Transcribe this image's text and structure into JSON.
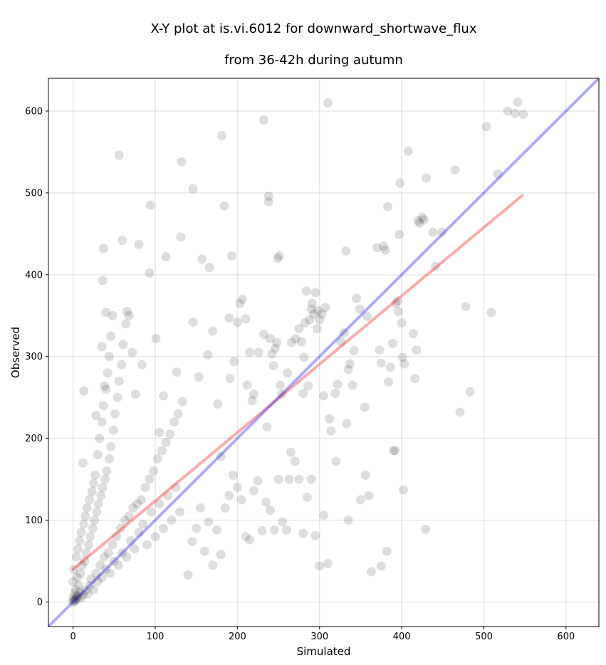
{
  "chart_data": {
    "type": "scatter",
    "title_line1": "X-Y plot at is.vi.6012 for downward_shortwave_flux",
    "title_line2": "from 36-42h during autumn",
    "xlabel": "Simulated",
    "ylabel": "Observed",
    "xlim": [
      -30,
      640
    ],
    "ylim": [
      -30,
      640
    ],
    "xticks": [
      0,
      100,
      200,
      300,
      400,
      500,
      600
    ],
    "yticks": [
      0,
      100,
      200,
      300,
      400,
      500,
      600
    ],
    "grid": true,
    "point_color": "#000000",
    "point_alpha": 0.13,
    "identity_line": {
      "color": "#0000ff",
      "from": [
        -30,
        -30
      ],
      "to": [
        640,
        640
      ]
    },
    "regression_line": {
      "color": "#ff0000",
      "from": [
        0,
        40
      ],
      "to": [
        547,
        497
      ]
    },
    "series": [
      {
        "points": [
          [
            0,
            0
          ],
          [
            1,
            2
          ],
          [
            2,
            1
          ],
          [
            3,
            4
          ],
          [
            0,
            5
          ],
          [
            4,
            3
          ],
          [
            5,
            8
          ],
          [
            2,
            10
          ],
          [
            6,
            6
          ],
          [
            8,
            12
          ],
          [
            3,
            15
          ],
          [
            10,
            5
          ],
          [
            7,
            20
          ],
          [
            12,
            9
          ],
          [
            0,
            25
          ],
          [
            15,
            14
          ],
          [
            5,
            30
          ],
          [
            18,
            10
          ],
          [
            9,
            35
          ],
          [
            20,
            20
          ],
          [
            1,
            40
          ],
          [
            22,
            28
          ],
          [
            11,
            45
          ],
          [
            25,
            15
          ],
          [
            14,
            50
          ],
          [
            28,
            35
          ],
          [
            4,
            55
          ],
          [
            30,
            25
          ],
          [
            16,
            60
          ],
          [
            33,
            45
          ],
          [
            6,
            65
          ],
          [
            35,
            30
          ],
          [
            19,
            70
          ],
          [
            38,
            55
          ],
          [
            8,
            75
          ],
          [
            40,
            40
          ],
          [
            21,
            80
          ],
          [
            43,
            60
          ],
          [
            10,
            85
          ],
          [
            45,
            35
          ],
          [
            24,
            90
          ],
          [
            48,
            70
          ],
          [
            13,
            95
          ],
          [
            50,
            50
          ],
          [
            26,
            100
          ],
          [
            53,
            80
          ],
          [
            15,
            105
          ],
          [
            55,
            45
          ],
          [
            29,
            110
          ],
          [
            58,
            90
          ],
          [
            17,
            115
          ],
          [
            60,
            60
          ],
          [
            31,
            120
          ],
          [
            63,
            100
          ],
          [
            20,
            125
          ],
          [
            65,
            55
          ],
          [
            34,
            130
          ],
          [
            68,
            105
          ],
          [
            23,
            135
          ],
          [
            70,
            75
          ],
          [
            36,
            140
          ],
          [
            73,
            115
          ],
          [
            25,
            145
          ],
          [
            75,
            65
          ],
          [
            39,
            150
          ],
          [
            78,
            120
          ],
          [
            27,
            155
          ],
          [
            80,
            85
          ],
          [
            41,
            160
          ],
          [
            83,
            125
          ],
          [
            12,
            170
          ],
          [
            85,
            95
          ],
          [
            44,
            175
          ],
          [
            88,
            140
          ],
          [
            30,
            180
          ],
          [
            90,
            70
          ],
          [
            46,
            190
          ],
          [
            93,
            150
          ],
          [
            32,
            200
          ],
          [
            95,
            110
          ],
          [
            49,
            210
          ],
          [
            98,
            160
          ],
          [
            35,
            220
          ],
          [
            100,
            80
          ],
          [
            51,
            230
          ],
          [
            103,
            175
          ],
          [
            37,
            240
          ],
          [
            105,
            120
          ],
          [
            54,
            250
          ],
          [
            108,
            185
          ],
          [
            40,
            260
          ],
          [
            110,
            90
          ],
          [
            56,
            270
          ],
          [
            113,
            195
          ],
          [
            42,
            280
          ],
          [
            115,
            130
          ],
          [
            59,
            290
          ],
          [
            118,
            205
          ],
          [
            44,
            300
          ],
          [
            120,
            100
          ],
          [
            61,
            315
          ],
          [
            123,
            220
          ],
          [
            46,
            325
          ],
          [
            125,
            140
          ],
          [
            64,
            340
          ],
          [
            128,
            230
          ],
          [
            48,
            350
          ],
          [
            130,
            110
          ],
          [
            66,
            355
          ],
          [
            133,
            245
          ],
          [
            13,
            258
          ],
          [
            28,
            228
          ],
          [
            35,
            312
          ],
          [
            38,
            264
          ],
          [
            40,
            354
          ],
          [
            36,
            393
          ],
          [
            37,
            432
          ],
          [
            56,
            546
          ],
          [
            60,
            442
          ],
          [
            68,
            350
          ],
          [
            72,
            305
          ],
          [
            76,
            254
          ],
          [
            80,
            437
          ],
          [
            84,
            290
          ],
          [
            93,
            402
          ],
          [
            94,
            485
          ],
          [
            101,
            322
          ],
          [
            105,
            207
          ],
          [
            110,
            252
          ],
          [
            113,
            422
          ],
          [
            126,
            281
          ],
          [
            131,
            446
          ],
          [
            132,
            538
          ],
          [
            146,
            342
          ],
          [
            146,
            505
          ],
          [
            153,
            275
          ],
          [
            157,
            419
          ],
          [
            164,
            302
          ],
          [
            166,
            409
          ],
          [
            170,
            331
          ],
          [
            176,
            242
          ],
          [
            180,
            178
          ],
          [
            181,
            570
          ],
          [
            184,
            484
          ],
          [
            190,
            347
          ],
          [
            191,
            273
          ],
          [
            193,
            423
          ],
          [
            196,
            294
          ],
          [
            200,
            342
          ],
          [
            203,
            365
          ],
          [
            206,
            370
          ],
          [
            210,
            346
          ],
          [
            212,
            265
          ],
          [
            215,
            305
          ],
          [
            218,
            246
          ],
          [
            220,
            254
          ],
          [
            226,
            305
          ],
          [
            232,
            327
          ],
          [
            232,
            589
          ],
          [
            236,
            214
          ],
          [
            238,
            496
          ],
          [
            238,
            489
          ],
          [
            240,
            322
          ],
          [
            242,
            303
          ],
          [
            244,
            289
          ],
          [
            246,
            310
          ],
          [
            248,
            317
          ],
          [
            249,
            420
          ],
          [
            251,
            423
          ],
          [
            252,
            265
          ],
          [
            254,
            254
          ],
          [
            261,
            280
          ],
          [
            263,
            150
          ],
          [
            265,
            183
          ],
          [
            266,
            317
          ],
          [
            271,
            322
          ],
          [
            275,
            334
          ],
          [
            278,
            318
          ],
          [
            280,
            255
          ],
          [
            281,
            299
          ],
          [
            282,
            341
          ],
          [
            284,
            380
          ],
          [
            286,
            264
          ],
          [
            288,
            345
          ],
          [
            290,
            358
          ],
          [
            291,
            365
          ],
          [
            293,
            352
          ],
          [
            295,
            378
          ],
          [
            297,
            334
          ],
          [
            298,
            356
          ],
          [
            300,
            345
          ],
          [
            303,
            352
          ],
          [
            305,
            252
          ],
          [
            307,
            360
          ],
          [
            310,
            610
          ],
          [
            312,
            224
          ],
          [
            314,
            209
          ],
          [
            319,
            255
          ],
          [
            322,
            266
          ],
          [
            326,
            318
          ],
          [
            330,
            329
          ],
          [
            332,
            429
          ],
          [
            333,
            218
          ],
          [
            335,
            284
          ],
          [
            337,
            291
          ],
          [
            340,
            265
          ],
          [
            342,
            307
          ],
          [
            345,
            371
          ],
          [
            349,
            358
          ],
          [
            355,
            238
          ],
          [
            356,
            155
          ],
          [
            358,
            349
          ],
          [
            363,
            37
          ],
          [
            370,
            433
          ],
          [
            373,
            308
          ],
          [
            375,
            292
          ],
          [
            378,
            435
          ],
          [
            380,
            430
          ],
          [
            383,
            483
          ],
          [
            384,
            269
          ],
          [
            386,
            287
          ],
          [
            389,
            316
          ],
          [
            390,
            185
          ],
          [
            392,
            185
          ],
          [
            393,
            365
          ],
          [
            395,
            368
          ],
          [
            396,
            355
          ],
          [
            397,
            449
          ],
          [
            398,
            512
          ],
          [
            400,
            341
          ],
          [
            401,
            299
          ],
          [
            402,
            137
          ],
          [
            403,
            291
          ],
          [
            408,
            551
          ],
          [
            414,
            328
          ],
          [
            416,
            273
          ],
          [
            418,
            308
          ],
          [
            420,
            466
          ],
          [
            422,
            463
          ],
          [
            425,
            470
          ],
          [
            427,
            467
          ],
          [
            429,
            89
          ],
          [
            430,
            518
          ],
          [
            438,
            452
          ],
          [
            441,
            410
          ],
          [
            449,
            452
          ],
          [
            465,
            528
          ],
          [
            471,
            232
          ],
          [
            478,
            361
          ],
          [
            483,
            257
          ],
          [
            503,
            581
          ],
          [
            509,
            354
          ],
          [
            517,
            523
          ],
          [
            529,
            600
          ],
          [
            538,
            597
          ],
          [
            541,
            611
          ],
          [
            548,
            596
          ],
          [
            140,
            33
          ],
          [
            145,
            74
          ],
          [
            150,
            90
          ],
          [
            155,
            115
          ],
          [
            160,
            62
          ],
          [
            165,
            98
          ],
          [
            170,
            45
          ],
          [
            175,
            88
          ],
          [
            180,
            58
          ],
          [
            185,
            115
          ],
          [
            190,
            130
          ],
          [
            195,
            155
          ],
          [
            200,
            140
          ],
          [
            205,
            125
          ],
          [
            210,
            80
          ],
          [
            215,
            76
          ],
          [
            220,
            136
          ],
          [
            225,
            148
          ],
          [
            230,
            87
          ],
          [
            235,
            122
          ],
          [
            240,
            112
          ],
          [
            245,
            88
          ],
          [
            250,
            150
          ],
          [
            255,
            98
          ],
          [
            260,
            88
          ],
          [
            270,
            172
          ],
          [
            275,
            150
          ],
          [
            280,
            84
          ],
          [
            285,
            128
          ],
          [
            290,
            150
          ],
          [
            295,
            81
          ],
          [
            300,
            44
          ],
          [
            305,
            106
          ],
          [
            310,
            47
          ],
          [
            320,
            172
          ],
          [
            335,
            100
          ],
          [
            350,
            125
          ],
          [
            360,
            130
          ],
          [
            375,
            44
          ],
          [
            382,
            62
          ]
        ]
      }
    ]
  }
}
